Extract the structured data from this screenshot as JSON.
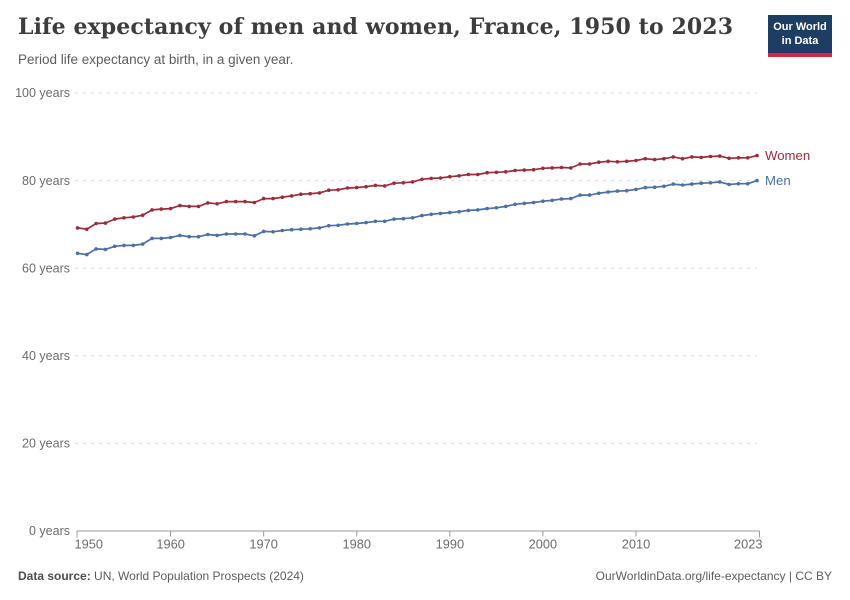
{
  "header": {
    "title": "Life expectancy of men and women, France, 1950 to 2023",
    "subtitle": "Period life expectancy at birth, in a given year.",
    "logo": {
      "line1": "Our World",
      "line2": "in Data",
      "bg_color": "#1d3d63",
      "accent_color": "#d7263d"
    }
  },
  "footer": {
    "source_label": "Data source:",
    "source_text": " UN, World Population Prospects (2024)",
    "credit": "OurWorldinData.org/life-expectancy | CC BY"
  },
  "chart_data": {
    "type": "line",
    "title": "Life expectancy of men and women, France, 1950 to 2023",
    "xlabel": "",
    "ylabel": "",
    "ylim": [
      0,
      100
    ],
    "yticks": [
      0,
      20,
      40,
      60,
      80,
      100
    ],
    "ytick_suffix": " years",
    "xticks": [
      1950,
      1960,
      1970,
      1980,
      1990,
      2000,
      2010,
      2023
    ],
    "grid": "horizontal-dashed",
    "legend_position": "line-end-right",
    "axis_color": "#999999",
    "grid_color": "#dcdcdc",
    "tick_label_color": "#6b6b6b",
    "x": [
      1950,
      1951,
      1952,
      1953,
      1954,
      1955,
      1956,
      1957,
      1958,
      1959,
      1960,
      1961,
      1962,
      1963,
      1964,
      1965,
      1966,
      1967,
      1968,
      1969,
      1970,
      1971,
      1972,
      1973,
      1974,
      1975,
      1976,
      1977,
      1978,
      1979,
      1980,
      1981,
      1982,
      1983,
      1984,
      1985,
      1986,
      1987,
      1988,
      1989,
      1990,
      1991,
      1992,
      1993,
      1994,
      1995,
      1996,
      1997,
      1998,
      1999,
      2000,
      2001,
      2002,
      2003,
      2004,
      2005,
      2006,
      2007,
      2008,
      2009,
      2010,
      2011,
      2012,
      2013,
      2014,
      2015,
      2016,
      2017,
      2018,
      2019,
      2020,
      2021,
      2022,
      2023
    ],
    "series": [
      {
        "name": "Women",
        "color": "#9c2c3b",
        "values": [
          69.2,
          68.9,
          70.2,
          70.3,
          71.2,
          71.5,
          71.7,
          72.1,
          73.3,
          73.5,
          73.6,
          74.3,
          74.1,
          74.1,
          74.9,
          74.7,
          75.2,
          75.2,
          75.2,
          75.0,
          75.9,
          75.9,
          76.2,
          76.5,
          76.9,
          77.0,
          77.2,
          77.8,
          77.9,
          78.3,
          78.4,
          78.6,
          78.9,
          78.8,
          79.4,
          79.5,
          79.7,
          80.3,
          80.5,
          80.6,
          80.9,
          81.1,
          81.4,
          81.4,
          81.8,
          81.9,
          82.0,
          82.3,
          82.4,
          82.5,
          82.8,
          82.9,
          83.0,
          82.9,
          83.8,
          83.8,
          84.2,
          84.4,
          84.3,
          84.4,
          84.6,
          85.0,
          84.8,
          85.0,
          85.4,
          85.0,
          85.4,
          85.3,
          85.5,
          85.6,
          85.1,
          85.2,
          85.2,
          85.7
        ]
      },
      {
        "name": "Men",
        "color": "#4c70a4",
        "values": [
          63.4,
          63.1,
          64.4,
          64.3,
          65.0,
          65.2,
          65.2,
          65.5,
          66.8,
          66.8,
          67.0,
          67.5,
          67.2,
          67.2,
          67.7,
          67.5,
          67.8,
          67.8,
          67.8,
          67.4,
          68.4,
          68.3,
          68.6,
          68.8,
          68.9,
          69.0,
          69.2,
          69.7,
          69.8,
          70.1,
          70.2,
          70.4,
          70.7,
          70.7,
          71.2,
          71.3,
          71.5,
          72.0,
          72.3,
          72.5,
          72.7,
          72.9,
          73.2,
          73.3,
          73.6,
          73.8,
          74.1,
          74.6,
          74.8,
          75.0,
          75.3,
          75.5,
          75.8,
          75.9,
          76.7,
          76.7,
          77.1,
          77.4,
          77.6,
          77.7,
          78.0,
          78.4,
          78.5,
          78.7,
          79.2,
          79.0,
          79.2,
          79.4,
          79.5,
          79.7,
          79.1,
          79.3,
          79.3,
          80.0
        ]
      }
    ]
  }
}
